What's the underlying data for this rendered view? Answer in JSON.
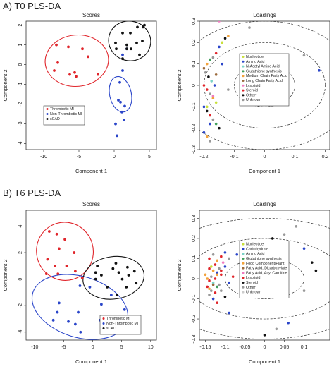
{
  "sections": [
    {
      "title": "A) T0 PLS-DA"
    },
    {
      "title": "B) T6 PLS-DA"
    }
  ],
  "chart_data": [
    {
      "id": "t0-scores",
      "type": "scatter",
      "title": "Scores",
      "xlabel": "Component 1",
      "ylabel": "Component 2",
      "xlim": [
        -12.5,
        6
      ],
      "ylim": [
        -4.3,
        2.2
      ],
      "xticks": [
        -10,
        -5,
        0,
        5
      ],
      "yticks": [
        -4,
        -3,
        -2,
        -1,
        0,
        1,
        2
      ],
      "legend": {
        "position": "bottom-center",
        "entries": [
          "Thrombotic MI",
          "Non-Thrombotic MI",
          "sCAD"
        ]
      },
      "series": [
        {
          "name": "Thrombotic MI",
          "color": "#e0252b",
          "x": [
            -8.2,
            -6.5,
            -4.5,
            -3.7,
            -8.0,
            -8.5,
            -5.6,
            -6.3,
            -5.4,
            -2.3
          ],
          "y": [
            1.0,
            0.9,
            0.8,
            0.4,
            0.1,
            -0.3,
            -0.4,
            -0.5,
            -0.6,
            -0.5
          ],
          "ellipse": {
            "cx": -5.3,
            "cy": 0.2,
            "rx": 4.5,
            "ry": 1.3,
            "angle": -5
          }
        },
        {
          "name": "Non-Thrombotic MI",
          "color": "#2a45c9",
          "x": [
            1.8,
            1.2,
            1.2,
            0.8,
            0.6,
            0.9,
            1.5,
            1.1,
            1.4,
            0.2,
            0.4
          ],
          "y": [
            0.8,
            0.5,
            -0.3,
            -0.9,
            -1.8,
            -1.9,
            -2.1,
            -2.4,
            -2.8,
            -3.0,
            -3.6
          ],
          "ellipse": {
            "cx": 0.9,
            "cy": -1.5,
            "rx": 2.55,
            "ry": 0.55,
            "angle": 78
          }
        },
        {
          "name": "sCAD",
          "color": "#111111",
          "x": [
            1.2,
            2.3,
            3.3,
            4.1,
            0.2,
            1.8,
            3.2,
            4.0,
            0.3,
            1.8,
            2.4,
            3.6,
            1.2,
            4.3
          ],
          "y": [
            1.6,
            1.6,
            1.9,
            1.9,
            1.1,
            1.0,
            1.1,
            1.2,
            0.8,
            0.8,
            0.8,
            0.5,
            0.3,
            2.0
          ],
          "ellipse": {
            "cx": 2.2,
            "cy": 1.2,
            "rx": 3.0,
            "ry": 1.0,
            "angle": 15
          }
        }
      ]
    },
    {
      "id": "t0-loadings",
      "type": "scatter",
      "title": "Loadings",
      "xlabel": "Component 1",
      "ylabel": "Component 2",
      "xlim": [
        -0.215,
        0.215
      ],
      "ylim": [
        -0.3,
        0.3
      ],
      "xticks": [
        -0.2,
        -0.1,
        0,
        0.1,
        0.2
      ],
      "yticks": [
        -0.3,
        -0.2,
        -0.1,
        0,
        0.1,
        0.2,
        0.3
      ],
      "circles": [
        0.1,
        0.2,
        0.3
      ],
      "legend": {
        "position": "center-right",
        "entries": [
          {
            "label": "Nucleotide",
            "color": "#c8e03a"
          },
          {
            "label": "Amino Acid",
            "color": "#2a45c9"
          },
          {
            "label": "N-Acetyl Amino Acid",
            "color": "#7bd3c7"
          },
          {
            "label": "Glutathione synthesis",
            "color": "#3f9e5a"
          },
          {
            "label": "Medium Chain Fatty Acid",
            "color": "#f2a23a"
          },
          {
            "label": "Long Chain Fatty Acid",
            "color": "#9b6a3c"
          },
          {
            "label": "Lysolipid",
            "color": "#f07ac0"
          },
          {
            "label": "Steroid",
            "color": "#e0252b"
          },
          {
            "label": "Other*",
            "color": "#111111"
          },
          {
            "label": "Unknown",
            "color": "#999999"
          }
        ]
      },
      "points": {
        "x": [
          -0.15,
          -0.12,
          -0.13,
          -0.14,
          -0.15,
          -0.16,
          -0.17,
          -0.18,
          -0.19,
          -0.2,
          -0.195,
          -0.185,
          -0.175,
          -0.165,
          -0.19,
          -0.18,
          -0.17,
          -0.16,
          -0.2,
          -0.19,
          -0.18,
          -0.17,
          -0.16,
          -0.15,
          -0.2,
          -0.19,
          -0.18,
          -0.17,
          -0.2,
          -0.19,
          -0.18,
          -0.16,
          -0.14,
          -0.12,
          0.18,
          0.13,
          -0.05
        ],
        "y": [
          0.3,
          0.23,
          0.22,
          0.2,
          0.18,
          0.15,
          0.13,
          0.12,
          0.1,
          0.08,
          0.06,
          0.04,
          0.02,
          0.0,
          -0.02,
          -0.04,
          -0.06,
          -0.08,
          -0.1,
          -0.12,
          -0.14,
          -0.16,
          -0.18,
          -0.2,
          -0.22,
          -0.24,
          -0.26,
          -0.05,
          0.0,
          -0.1,
          -0.18,
          0.05,
          0.1,
          -0.02,
          0.07,
          0.14,
          0.27
        ],
        "colors": [
          "#f07ac0",
          "#f2a23a",
          "#111111",
          "#c8e03a",
          "#2a45c9",
          "#e0252b",
          "#999999",
          "#3f9e5a",
          "#f2a23a",
          "#9b6a3c",
          "#999999",
          "#111111",
          "#7bd3c7",
          "#2a45c9",
          "#e0252b",
          "#999999",
          "#f2a23a",
          "#c8e03a",
          "#2a45c9",
          "#111111",
          "#e0252b",
          "#999999",
          "#3f9e5a",
          "#111111",
          "#2a45c9",
          "#f2a23a",
          "#999999",
          "#f07ac0",
          "#e0252b",
          "#c8e03a",
          "#2a45c9",
          "#9b6a3c",
          "#2a45c9",
          "#999999",
          "#2a45c9",
          "#999999",
          "#999999"
        ]
      }
    },
    {
      "id": "t6-scores",
      "type": "scatter",
      "title": "Scores",
      "xlabel": "Component 1",
      "ylabel": "Component 2",
      "xlim": [
        -11.5,
        11
      ],
      "ylim": [
        -4.6,
        5.2
      ],
      "xticks": [
        -10,
        -5,
        0,
        5,
        10
      ],
      "yticks": [
        -4,
        -2,
        0,
        2,
        4
      ],
      "legend": {
        "position": "bottom-right",
        "entries": [
          "Thrombotic MI",
          "Non-Thrombotic MI",
          "sCAD"
        ]
      },
      "series": [
        {
          "name": "Thrombotic MI",
          "color": "#e0252b",
          "x": [
            -7.5,
            -6.2,
            -4.8,
            -5.8,
            -3.2,
            -7.8,
            -6.5,
            -4.5,
            -3.0,
            -6.0,
            -8.0,
            -1.8
          ],
          "y": [
            3.6,
            3.4,
            3.0,
            2.3,
            2.0,
            1.5,
            1.0,
            1.0,
            0.6,
            0.4,
            0.4,
            0.1
          ],
          "ellipse": {
            "cx": -4.8,
            "cy": 2.1,
            "rx": 4.9,
            "ry": 2.2,
            "angle": -16
          }
        },
        {
          "name": "Non-Thrombotic MI",
          "color": "#2a45c9",
          "x": [
            -2.2,
            -5.8,
            1.5,
            -6.8,
            -2.5,
            -6.1,
            -3.0,
            -4.2,
            -2.1,
            1.3,
            5.5,
            3.2,
            -0.5
          ],
          "y": [
            -0.5,
            -1.8,
            -1.9,
            -3.1,
            -2.5,
            -2.5,
            -3.4,
            -3.2,
            -4.0,
            -3.1,
            -2.3,
            -1.2,
            -0.6
          ],
          "ellipse": {
            "cx": -2.2,
            "cy": -2.1,
            "rx": 8.5,
            "ry": 2.3,
            "angle": 17
          }
        },
        {
          "name": "sCAD",
          "color": "#111111",
          "x": [
            0.8,
            4.0,
            3.5,
            0.5,
            4.5,
            7.2,
            6.2,
            5.1,
            2.5,
            5.8,
            4.2,
            0.5,
            1.5,
            7.5,
            6.0
          ],
          "y": [
            1.0,
            1.2,
            0.8,
            0.0,
            0.5,
            0.6,
            0.3,
            0.0,
            -0.6,
            -0.6,
            -1.2,
            0.5,
            0.3,
            -0.3,
            0.9
          ],
          "ellipse": {
            "cx": 3.6,
            "cy": 0.1,
            "rx": 5.3,
            "ry": 1.6,
            "angle": -8
          }
        }
      ]
    },
    {
      "id": "t6-loadings",
      "type": "scatter",
      "title": "Loadings",
      "xlabel": "Component 1",
      "ylabel": "Component 2",
      "xlim": [
        -0.165,
        0.165
      ],
      "ylim": [
        -0.305,
        0.34
      ],
      "xticks": [
        -0.15,
        -0.1,
        -0.05,
        0,
        0.05,
        0.1
      ],
      "yticks": [
        -0.3,
        -0.2,
        -0.1,
        0,
        0.1,
        0.2,
        0.3
      ],
      "circles": [
        0.1,
        0.2,
        0.3
      ],
      "legend": {
        "position": "center-right",
        "entries": [
          {
            "label": "Nucleotide",
            "color": "#c8e03a"
          },
          {
            "label": "Carbohydrate",
            "color": "#2a45c9"
          },
          {
            "label": "Amino Acid",
            "color": "#7bd3c7"
          },
          {
            "label": "Glutathione synthesis",
            "color": "#3f9e5a"
          },
          {
            "label": "Food Component/Plant",
            "color": "#f2a23a"
          },
          {
            "label": "Fatty Acid, Dicarboxylate",
            "color": "#9b6a3c"
          },
          {
            "label": "Fatty Acid, Acyl Carnitine",
            "color": "#f07ac0"
          },
          {
            "label": "Lysolipid",
            "color": "#e0252b"
          },
          {
            "label": "Steroid",
            "color": "#111111"
          },
          {
            "label": "Other*",
            "color": "#999999"
          },
          {
            "label": "Unknown",
            "color": "#cccccc"
          }
        ]
      },
      "points": {
        "x": [
          -0.14,
          -0.135,
          -0.13,
          -0.125,
          -0.12,
          -0.115,
          -0.11,
          -0.105,
          -0.145,
          -0.14,
          -0.135,
          -0.13,
          -0.125,
          -0.12,
          -0.115,
          -0.11,
          -0.1,
          -0.145,
          -0.14,
          -0.135,
          -0.13,
          -0.125,
          -0.12,
          -0.14,
          -0.13,
          -0.12,
          -0.11,
          -0.1,
          -0.09,
          -0.15,
          -0.14,
          -0.13,
          -0.12,
          -0.11,
          -0.1,
          -0.09,
          -0.08,
          -0.07,
          -0.06,
          -0.04,
          0.02,
          0.05,
          0.08,
          0.1,
          0.12,
          0.13,
          0.1,
          0.06,
          0.0,
          -0.09,
          0.03
        ],
        "y": [
          0.05,
          0.06,
          0.04,
          0.07,
          0.03,
          0.05,
          0.02,
          0.08,
          0.0,
          -0.01,
          0.01,
          -0.02,
          0.0,
          0.02,
          -0.03,
          0.04,
          0.06,
          -0.04,
          -0.05,
          -0.06,
          -0.03,
          -0.07,
          -0.04,
          0.1,
          0.12,
          0.09,
          0.11,
          0.13,
          0.1,
          0.02,
          -0.08,
          -0.1,
          -0.12,
          -0.06,
          -0.09,
          -0.02,
          0.01,
          0.12,
          0.15,
          0.05,
          0.2,
          0.22,
          0.26,
          0.15,
          0.08,
          0.04,
          -0.06,
          -0.22,
          -0.28,
          -0.17,
          -0.25
        ],
        "colors": [
          "#e0252b",
          "#c8e03a",
          "#f2a23a",
          "#e0252b",
          "#2a45c9",
          "#999999",
          "#e0252b",
          "#f07ac0",
          "#f2a23a",
          "#e0252b",
          "#999999",
          "#7bd3c7",
          "#e0252b",
          "#f2a23a",
          "#999999",
          "#e0252b",
          "#2a45c9",
          "#e0252b",
          "#f2a23a",
          "#999999",
          "#9b6a3c",
          "#e0252b",
          "#3f9e5a",
          "#e0252b",
          "#999999",
          "#f2a23a",
          "#e0252b",
          "#2a45c9",
          "#999999",
          "#f2a23a",
          "#999999",
          "#2a45c9",
          "#e0252b",
          "#999999",
          "#111111",
          "#2a45c9",
          "#e0252b",
          "#2a45c9",
          "#999999",
          "#2a45c9",
          "#111111",
          "#999999",
          "#999999",
          "#2a45c9",
          "#111111",
          "#111111",
          "#999999",
          "#2a45c9",
          "#111111",
          "#2a45c9",
          "#999999"
        ]
      }
    }
  ]
}
